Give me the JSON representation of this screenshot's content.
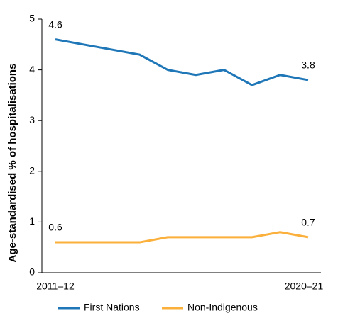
{
  "chart_data": {
    "type": "line",
    "y_label": "Age-standardised % of hospitalisations",
    "categories": [
      "2011–12",
      null,
      null,
      null,
      null,
      null,
      null,
      null,
      null,
      "2020–21"
    ],
    "series": [
      {
        "name": "First Nations",
        "color": "#1f77b8",
        "values": [
          4.6,
          4.5,
          4.4,
          4.3,
          4.0,
          3.9,
          4.0,
          3.7,
          3.9,
          3.8
        ]
      },
      {
        "name": "Non-Indigenous",
        "color": "#fbb03b",
        "values": [
          0.6,
          0.6,
          0.6,
          0.6,
          0.7,
          0.7,
          0.7,
          0.7,
          0.8,
          0.7
        ]
      }
    ],
    "ylim": [
      0,
      5
    ],
    "yticks": [
      0,
      1,
      2,
      3,
      4,
      5
    ],
    "grid": false
  }
}
